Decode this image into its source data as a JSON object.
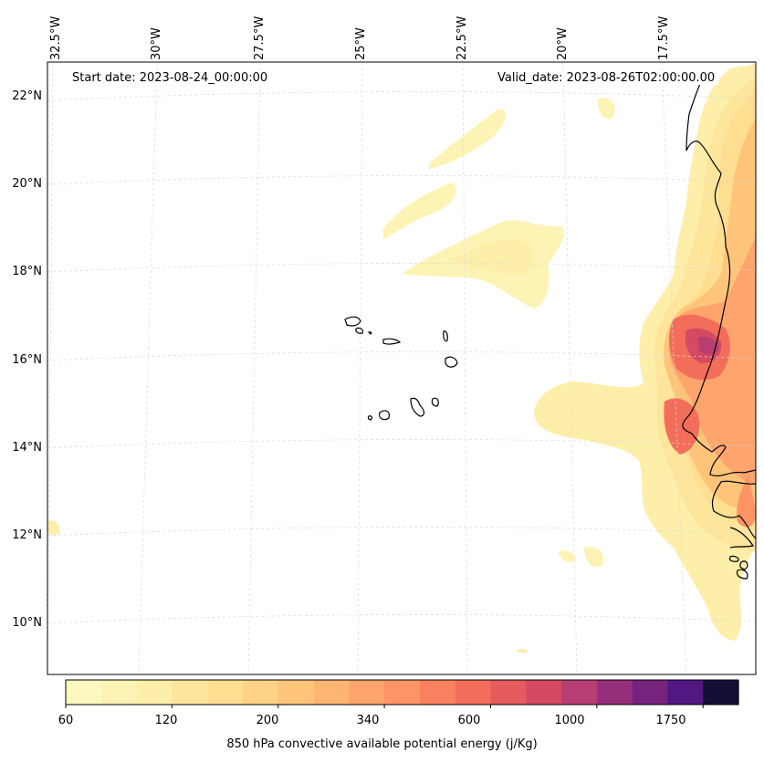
{
  "map": {
    "start_date": "Start date: 2023-08-24_00:00:00",
    "valid_date": "Valid_date: 2023-08-26T02:00:00.00",
    "lon_labels": [
      "32.5°W",
      "30°W",
      "27.5°W",
      "25°W",
      "22.5°W",
      "20°W",
      "17.5°W"
    ],
    "lat_labels": [
      "22°N",
      "20°N",
      "18°N",
      "16°N",
      "14°N",
      "12°N",
      "10°N"
    ]
  },
  "colorbar": {
    "label": "850 hPa convective available potential energy (j/Kg)",
    "ticks": [
      "60",
      "120",
      "200",
      "340",
      "600",
      "1000",
      "1750"
    ],
    "colors": [
      "#fdf8be",
      "#fdf3b4",
      "#fdeea9",
      "#fde69c",
      "#fede90",
      "#fed385",
      "#fec47a",
      "#feb573",
      "#fea46d",
      "#fe9466",
      "#fa8160",
      "#f36e5a",
      "#e65b5d",
      "#d54962",
      "#b73e72",
      "#962f7b",
      "#76237e",
      "#521783",
      "#140e36"
    ]
  }
}
